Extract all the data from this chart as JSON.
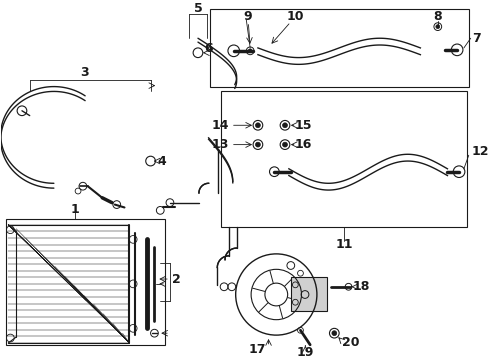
{
  "bg_color": "#ffffff",
  "line_color": "#1a1a1a",
  "lw_thick": 1.5,
  "lw_med": 1.0,
  "lw_thin": 0.6,
  "font_size": 8,
  "bold_font": 9
}
